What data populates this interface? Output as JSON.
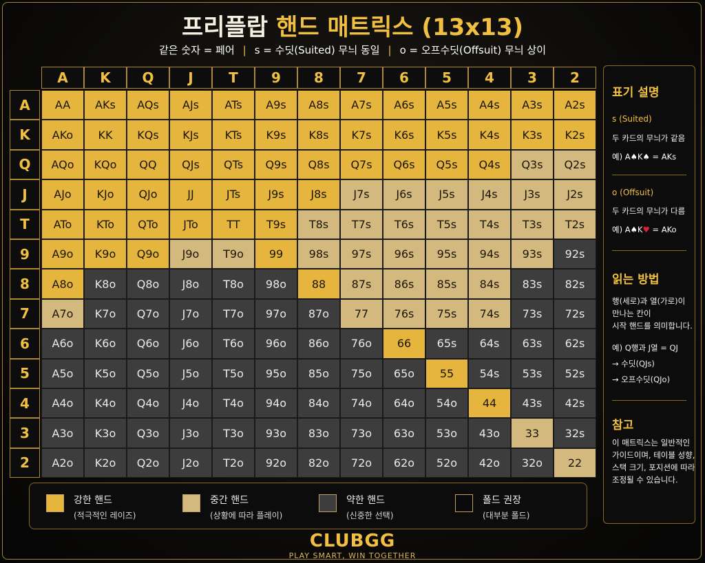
{
  "header": {
    "title_main": "프리플랍",
    "title_highlight": "핸드 매트릭스 (13x13)",
    "subtitle": [
      {
        "text": "같은 숫자 = 페어",
        "color": "#ffffff"
      },
      {
        "text": "|",
        "color": "#f2c040"
      },
      {
        "text": "s = 수딧(Suited) 무늬 동일",
        "color": "#ffffff"
      },
      {
        "text": "|",
        "color": "#f2c040"
      },
      {
        "text": "o = 오프수딧(Offsuit) 무늬 상이",
        "color": "#ffffff"
      }
    ]
  },
  "matrix": {
    "columns": [
      "A",
      "K",
      "Q",
      "J",
      "T",
      "9",
      "8",
      "7",
      "6",
      "5",
      "4",
      "3",
      "2"
    ],
    "rows": [
      "A",
      "K",
      "Q",
      "J",
      "T",
      "9",
      "8",
      "7",
      "6",
      "5",
      "4",
      "3",
      "2"
    ],
    "cells": [
      [
        {
          "label": "AA",
          "color": "#e5b53e"
        },
        {
          "label": "AKs",
          "color": "#e5b53e"
        },
        {
          "label": "AQs",
          "color": "#e5b53e"
        },
        {
          "label": "AJs",
          "color": "#e5b53e"
        },
        {
          "label": "ATs",
          "color": "#e5b53e"
        },
        {
          "label": "A9s",
          "color": "#e5b53e"
        },
        {
          "label": "A8s",
          "color": "#e5b53e"
        },
        {
          "label": "A7s",
          "color": "#e5b53e"
        },
        {
          "label": "A6s",
          "color": "#e5b53e"
        },
        {
          "label": "A5s",
          "color": "#e5b53e"
        },
        {
          "label": "A4s",
          "color": "#e5b53e"
        },
        {
          "label": "A3s",
          "color": "#e5b53e"
        },
        {
          "label": "A2s",
          "color": "#e5b53e"
        }
      ],
      [
        {
          "label": "AKo",
          "color": "#e5b53e"
        },
        {
          "label": "KK",
          "color": "#e5b53e"
        },
        {
          "label": "KQs",
          "color": "#e5b53e"
        },
        {
          "label": "KJs",
          "color": "#e5b53e"
        },
        {
          "label": "KTs",
          "color": "#e5b53e"
        },
        {
          "label": "K9s",
          "color": "#e5b53e"
        },
        {
          "label": "K8s",
          "color": "#e5b53e"
        },
        {
          "label": "K7s",
          "color": "#e5b53e"
        },
        {
          "label": "K6s",
          "color": "#e5b53e"
        },
        {
          "label": "K5s",
          "color": "#e5b53e"
        },
        {
          "label": "K4s",
          "color": "#e5b53e"
        },
        {
          "label": "K3s",
          "color": "#e5b53e"
        },
        {
          "label": "K2s",
          "color": "#e5b53e"
        }
      ],
      [
        {
          "label": "AQo",
          "color": "#e5b53e"
        },
        {
          "label": "KQo",
          "color": "#e5b53e"
        },
        {
          "label": "QQ",
          "color": "#e5b53e"
        },
        {
          "label": "QJs",
          "color": "#e5b53e"
        },
        {
          "label": "QTs",
          "color": "#e5b53e"
        },
        {
          "label": "Q9s",
          "color": "#e5b53e"
        },
        {
          "label": "Q8s",
          "color": "#e5b53e"
        },
        {
          "label": "Q7s",
          "color": "#e5b53e"
        },
        {
          "label": "Q6s",
          "color": "#e5b53e"
        },
        {
          "label": "Q5s",
          "color": "#e5b53e"
        },
        {
          "label": "Q4s",
          "color": "#e5b53e"
        },
        {
          "label": "Q3s",
          "color": "#d3b97d"
        },
        {
          "label": "Q2s",
          "color": "#d3b97d"
        }
      ],
      [
        {
          "label": "AJo",
          "color": "#e5b53e"
        },
        {
          "label": "KJo",
          "color": "#e5b53e"
        },
        {
          "label": "QJo",
          "color": "#e5b53e"
        },
        {
          "label": "JJ",
          "color": "#e5b53e"
        },
        {
          "label": "JTs",
          "color": "#e5b53e"
        },
        {
          "label": "J9s",
          "color": "#e5b53e"
        },
        {
          "label": "J8s",
          "color": "#e5b53e"
        },
        {
          "label": "J7s",
          "color": "#d3b97d"
        },
        {
          "label": "J6s",
          "color": "#d3b97d"
        },
        {
          "label": "J5s",
          "color": "#d3b97d"
        },
        {
          "label": "J4s",
          "color": "#d3b97d"
        },
        {
          "label": "J3s",
          "color": "#d3b97d"
        },
        {
          "label": "J2s",
          "color": "#d3b97d"
        }
      ],
      [
        {
          "label": "ATo",
          "color": "#e5b53e"
        },
        {
          "label": "KTo",
          "color": "#e5b53e"
        },
        {
          "label": "QTo",
          "color": "#e5b53e"
        },
        {
          "label": "JTo",
          "color": "#e5b53e"
        },
        {
          "label": "TT",
          "color": "#e5b53e"
        },
        {
          "label": "T9s",
          "color": "#e5b53e"
        },
        {
          "label": "T8s",
          "color": "#d3b97d"
        },
        {
          "label": "T7s",
          "color": "#d3b97d"
        },
        {
          "label": "T6s",
          "color": "#d3b97d"
        },
        {
          "label": "T5s",
          "color": "#d3b97d"
        },
        {
          "label": "T4s",
          "color": "#d3b97d"
        },
        {
          "label": "T3s",
          "color": "#d3b97d"
        },
        {
          "label": "T2s",
          "color": "#d3b97d"
        }
      ],
      [
        {
          "label": "A9o",
          "color": "#e5b53e"
        },
        {
          "label": "K9o",
          "color": "#e5b53e"
        },
        {
          "label": "Q9o",
          "color": "#e5b53e"
        },
        {
          "label": "J9o",
          "color": "#d3b97d"
        },
        {
          "label": "T9o",
          "color": "#d3b97d"
        },
        {
          "label": "99",
          "color": "#e5b53e"
        },
        {
          "label": "98s",
          "color": "#d3b97d"
        },
        {
          "label": "97s",
          "color": "#d3b97d"
        },
        {
          "label": "96s",
          "color": "#d3b97d"
        },
        {
          "label": "95s",
          "color": "#d3b97d"
        },
        {
          "label": "94s",
          "color": "#d3b97d"
        },
        {
          "label": "93s",
          "color": "#d3b97d"
        },
        {
          "label": "92s",
          "color": "#3d3d3d"
        }
      ],
      [
        {
          "label": "A8o",
          "color": "#e5b53e"
        },
        {
          "label": "K8o",
          "color": "#3d3d3d"
        },
        {
          "label": "Q8o",
          "color": "#3d3d3d"
        },
        {
          "label": "J8o",
          "color": "#3d3d3d"
        },
        {
          "label": "T8o",
          "color": "#3d3d3d"
        },
        {
          "label": "98o",
          "color": "#3d3d3d"
        },
        {
          "label": "88",
          "color": "#e5b53e"
        },
        {
          "label": "87s",
          "color": "#d3b97d"
        },
        {
          "label": "86s",
          "color": "#d3b97d"
        },
        {
          "label": "85s",
          "color": "#d3b97d"
        },
        {
          "label": "84s",
          "color": "#d3b97d"
        },
        {
          "label": "83s",
          "color": "#3d3d3d"
        },
        {
          "label": "82s",
          "color": "#3d3d3d"
        }
      ],
      [
        {
          "label": "A7o",
          "color": "#d3b97d"
        },
        {
          "label": "K7o",
          "color": "#3d3d3d"
        },
        {
          "label": "Q7o",
          "color": "#3d3d3d"
        },
        {
          "label": "J7o",
          "color": "#3d3d3d"
        },
        {
          "label": "T7o",
          "color": "#3d3d3d"
        },
        {
          "label": "97o",
          "color": "#3d3d3d"
        },
        {
          "label": "87o",
          "color": "#3d3d3d"
        },
        {
          "label": "77",
          "color": "#d3b97d"
        },
        {
          "label": "76s",
          "color": "#d3b97d"
        },
        {
          "label": "75s",
          "color": "#d3b97d"
        },
        {
          "label": "74s",
          "color": "#d3b97d"
        },
        {
          "label": "73s",
          "color": "#3d3d3d"
        },
        {
          "label": "72s",
          "color": "#3d3d3d"
        }
      ],
      [
        {
          "label": "A6o",
          "color": "#3d3d3d"
        },
        {
          "label": "K6o",
          "color": "#3d3d3d"
        },
        {
          "label": "Q6o",
          "color": "#3d3d3d"
        },
        {
          "label": "J6o",
          "color": "#3d3d3d"
        },
        {
          "label": "T6o",
          "color": "#3d3d3d"
        },
        {
          "label": "96o",
          "color": "#3d3d3d"
        },
        {
          "label": "86o",
          "color": "#3d3d3d"
        },
        {
          "label": "76o",
          "color": "#3d3d3d"
        },
        {
          "label": "66",
          "color": "#e5b53e"
        },
        {
          "label": "65s",
          "color": "#3d3d3d"
        },
        {
          "label": "64s",
          "color": "#3d3d3d"
        },
        {
          "label": "63s",
          "color": "#3d3d3d"
        },
        {
          "label": "62s",
          "color": "#3d3d3d"
        }
      ],
      [
        {
          "label": "A5o",
          "color": "#3d3d3d"
        },
        {
          "label": "K5o",
          "color": "#3d3d3d"
        },
        {
          "label": "Q5o",
          "color": "#3d3d3d"
        },
        {
          "label": "J5o",
          "color": "#3d3d3d"
        },
        {
          "label": "T5o",
          "color": "#3d3d3d"
        },
        {
          "label": "95o",
          "color": "#3d3d3d"
        },
        {
          "label": "85o",
          "color": "#3d3d3d"
        },
        {
          "label": "75o",
          "color": "#3d3d3d"
        },
        {
          "label": "65o",
          "color": "#3d3d3d"
        },
        {
          "label": "55",
          "color": "#e5b53e"
        },
        {
          "label": "54s",
          "color": "#3d3d3d"
        },
        {
          "label": "53s",
          "color": "#3d3d3d"
        },
        {
          "label": "52s",
          "color": "#3d3d3d"
        }
      ],
      [
        {
          "label": "A4o",
          "color": "#3d3d3d"
        },
        {
          "label": "K4o",
          "color": "#3d3d3d"
        },
        {
          "label": "Q4o",
          "color": "#3d3d3d"
        },
        {
          "label": "J4o",
          "color": "#3d3d3d"
        },
        {
          "label": "T4o",
          "color": "#3d3d3d"
        },
        {
          "label": "94o",
          "color": "#3d3d3d"
        },
        {
          "label": "84o",
          "color": "#3d3d3d"
        },
        {
          "label": "74o",
          "color": "#3d3d3d"
        },
        {
          "label": "64o",
          "color": "#3d3d3d"
        },
        {
          "label": "54o",
          "color": "#3d3d3d"
        },
        {
          "label": "44",
          "color": "#e5b53e"
        },
        {
          "label": "43s",
          "color": "#3d3d3d"
        },
        {
          "label": "42s",
          "color": "#3d3d3d"
        }
      ],
      [
        {
          "label": "A3o",
          "color": "#3d3d3d"
        },
        {
          "label": "K3o",
          "color": "#3d3d3d"
        },
        {
          "label": "Q3o",
          "color": "#3d3d3d"
        },
        {
          "label": "J3o",
          "color": "#3d3d3d"
        },
        {
          "label": "T3o",
          "color": "#3d3d3d"
        },
        {
          "label": "93o",
          "color": "#3d3d3d"
        },
        {
          "label": "83o",
          "color": "#3d3d3d"
        },
        {
          "label": "73o",
          "color": "#3d3d3d"
        },
        {
          "label": "63o",
          "color": "#3d3d3d"
        },
        {
          "label": "53o",
          "color": "#3d3d3d"
        },
        {
          "label": "43o",
          "color": "#3d3d3d"
        },
        {
          "label": "33",
          "color": "#d3b97d"
        },
        {
          "label": "32s",
          "color": "#3d3d3d"
        }
      ],
      [
        {
          "label": "A2o",
          "color": "#3d3d3d"
        },
        {
          "label": "K2o",
          "color": "#3d3d3d"
        },
        {
          "label": "Q2o",
          "color": "#3d3d3d"
        },
        {
          "label": "J2o",
          "color": "#3d3d3d"
        },
        {
          "label": "T2o",
          "color": "#3d3d3d"
        },
        {
          "label": "92o",
          "color": "#3d3d3d"
        },
        {
          "label": "82o",
          "color": "#3d3d3d"
        },
        {
          "label": "72o",
          "color": "#3d3d3d"
        },
        {
          "label": "62o",
          "color": "#3d3d3d"
        },
        {
          "label": "52o",
          "color": "#3d3d3d"
        },
        {
          "label": "42o",
          "color": "#3d3d3d"
        },
        {
          "label": "32o",
          "color": "#3d3d3d"
        },
        {
          "label": "22",
          "color": "#d3b97d"
        }
      ]
    ]
  },
  "legend": [
    {
      "label": "강한 핸드",
      "note": "(적극적인 레이즈)",
      "color": "#e5b53e"
    },
    {
      "label": "중간 핸드",
      "note": "(상황에 따라 플레이)",
      "color": "#d3b97d"
    },
    {
      "label": "약한 핸드",
      "note": "(신중한 선택)",
      "color": "#3d3d3d"
    },
    {
      "label": "폴드 권장",
      "note": "(대부분 폴드)",
      "color": "#0a0a0a"
    }
  ],
  "sidebar": {
    "notation": {
      "heading": "표기 설명",
      "suited": {
        "label": "s (Suited)",
        "desc": "두 카드의 무늬가 같음",
        "example": [
          {
            "text": "예) A♠K♠ = AKs",
            "color": "#ffffff"
          }
        ]
      },
      "offsuit": {
        "label": "o (Offsuit)",
        "desc": "두 카드의 무늬가 다름",
        "example": [
          {
            "text": "예) A♠K",
            "color": "#ffffff"
          },
          {
            "text": "♥",
            "color": "#e02030"
          },
          {
            "text": " = AKo",
            "color": "#ffffff"
          }
        ]
      }
    },
    "reading": {
      "heading": "읽는 방법",
      "lines": [
        "행(세로)과 열(가로)이",
        "만나는 칸이",
        "시작 핸드를 의미합니다.",
        "예) Q행과 J열 = QJ",
        "→ 수딧(QJs)",
        "→ 오프수딧(QJo)"
      ]
    },
    "note": {
      "heading": "참고",
      "lines": [
        "이 매트릭스는 일반적인",
        "가이드이며, 테이블 성향,",
        "스택 크기, 포지션에 따라",
        "조정될 수 있습니다."
      ]
    }
  },
  "footer": {
    "brand": "CLUBGG",
    "tagline": "PLAY SMART, WIN TOGETHER"
  }
}
